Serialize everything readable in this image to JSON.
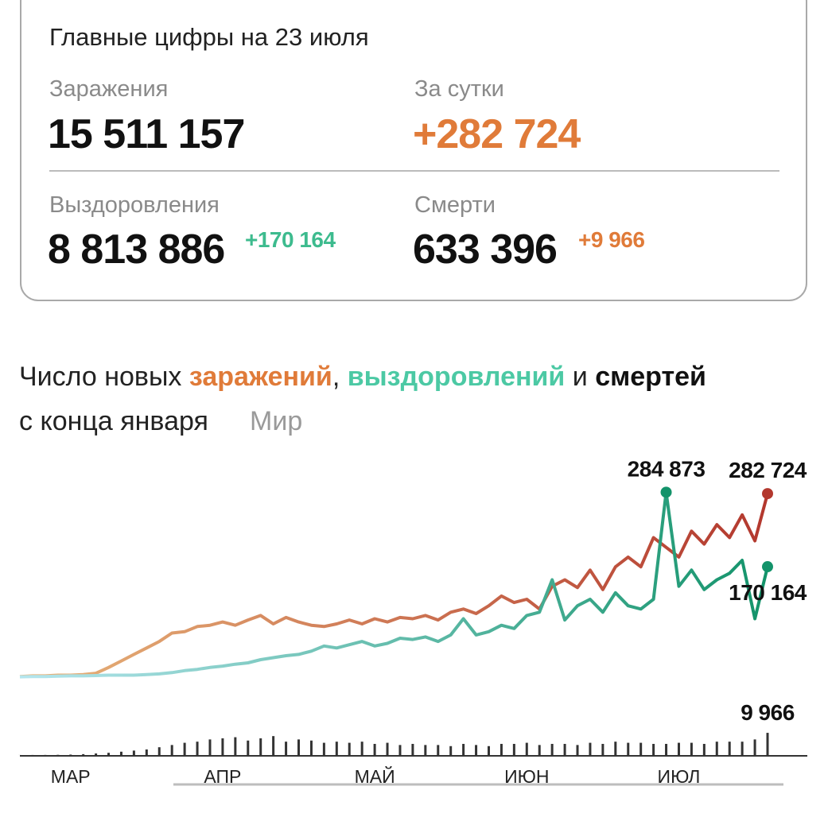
{
  "summary": {
    "title": "Главные цифры на 23 июля",
    "infections": {
      "label": "Заражения",
      "value": "15 511 157"
    },
    "daily": {
      "label": "За сутки",
      "value": "+282 724"
    },
    "recoveries": {
      "label": "Выздоровления",
      "value": "8 813 886",
      "delta": "+170 164"
    },
    "deaths": {
      "label": "Смерти",
      "value": "633 396",
      "delta": "+9 966"
    }
  },
  "chart_data": {
    "type": "line",
    "title_parts": [
      {
        "text": "Число новых ",
        "color": "#222222",
        "bold": false
      },
      {
        "text": "заражений",
        "color": "#e07b39",
        "bold": true
      },
      {
        "text": ", ",
        "color": "#222222",
        "bold": false
      },
      {
        "text": "выздоровлений",
        "color": "#4cc9a4",
        "bold": true
      },
      {
        "text": " и ",
        "color": "#222222",
        "bold": false
      },
      {
        "text": "смертей",
        "color": "#111111",
        "bold": true
      }
    ],
    "subtitle": "с конца января",
    "region": "Мир",
    "categories": [
      null,
      null,
      null,
      null,
      "МАР",
      null,
      null,
      null,
      null,
      null,
      null,
      null,
      null,
      null,
      null,
      null,
      "АПР",
      null,
      null,
      null,
      null,
      null,
      null,
      null,
      null,
      null,
      null,
      null,
      "МАЙ",
      null,
      null,
      null,
      null,
      null,
      null,
      null,
      null,
      null,
      null,
      null,
      "ИЮН",
      null,
      null,
      null,
      null,
      null,
      null,
      null,
      null,
      null,
      null,
      null,
      "ИЮЛ",
      null,
      null,
      null,
      null,
      null,
      null,
      null
    ],
    "ylim": [
      0,
      300000
    ],
    "y2lim": [
      0,
      10700
    ],
    "series": [
      {
        "name": "заражений",
        "color_start": "#e8b57a",
        "color": "#b3382e",
        "values": [
          1000,
          2000,
          2000,
          3000,
          3000,
          4000,
          6000,
          15000,
          25000,
          35000,
          45000,
          55000,
          68000,
          70000,
          78000,
          80000,
          85000,
          80000,
          88000,
          95000,
          82000,
          92000,
          85000,
          80000,
          78000,
          82000,
          88000,
          82000,
          90000,
          85000,
          92000,
          90000,
          95000,
          88000,
          100000,
          105000,
          98000,
          110000,
          125000,
          115000,
          120000,
          105000,
          140000,
          150000,
          138000,
          165000,
          135000,
          170000,
          185000,
          170000,
          215000,
          200000,
          185000,
          225000,
          205000,
          235000,
          215000,
          250000,
          210000,
          282724
        ],
        "value_labels": [
          null,
          null,
          null,
          null,
          null,
          null,
          null,
          null,
          null,
          null,
          null,
          null,
          null,
          null,
          null,
          null,
          null,
          null,
          null,
          null,
          null,
          null,
          null,
          null,
          null,
          null,
          null,
          null,
          null,
          null,
          null,
          null,
          null,
          null,
          null,
          null,
          null,
          null,
          null,
          null,
          null,
          null,
          null,
          null,
          null,
          null,
          null,
          null,
          null,
          null,
          null,
          null,
          null,
          null,
          null,
          null,
          null,
          null,
          null,
          "282 724"
        ]
      },
      {
        "name": "выздоровлений",
        "color_start": "#b5e6ee",
        "color": "#13936a",
        "values": [
          500,
          1000,
          1000,
          1500,
          2000,
          2000,
          2500,
          3000,
          3000,
          3000,
          4000,
          5000,
          7000,
          10000,
          12000,
          15000,
          17000,
          20000,
          22000,
          27000,
          30000,
          33000,
          35000,
          40000,
          48000,
          45000,
          50000,
          55000,
          48000,
          52000,
          60000,
          58000,
          62000,
          55000,
          65000,
          90000,
          65000,
          70000,
          80000,
          75000,
          95000,
          100000,
          150000,
          88000,
          110000,
          120000,
          100000,
          130000,
          110000,
          105000,
          120000,
          284873,
          140000,
          165000,
          135000,
          150000,
          160000,
          180000,
          90000,
          170164
        ],
        "value_labels": [
          null,
          null,
          null,
          null,
          null,
          null,
          null,
          null,
          null,
          null,
          null,
          null,
          null,
          null,
          null,
          null,
          null,
          null,
          null,
          null,
          null,
          null,
          null,
          null,
          null,
          null,
          null,
          null,
          null,
          null,
          null,
          null,
          null,
          null,
          null,
          null,
          null,
          null,
          null,
          null,
          null,
          null,
          null,
          null,
          null,
          null,
          null,
          null,
          null,
          null,
          null,
          "284 873",
          null,
          null,
          null,
          null,
          null,
          null,
          null,
          "170 164"
        ]
      },
      {
        "name": "смертей",
        "color": "#333333",
        "type": "bar",
        "axis": "y2",
        "values": [
          20,
          30,
          50,
          100,
          200,
          400,
          700,
          1000,
          1500,
          2000,
          2500,
          3500,
          4500,
          5500,
          6000,
          7000,
          7500,
          8000,
          6500,
          7500,
          8500,
          6000,
          7000,
          6500,
          5500,
          6000,
          5500,
          6000,
          5000,
          5500,
          4500,
          5000,
          4500,
          4500,
          4000,
          5000,
          4500,
          4000,
          5000,
          5000,
          5500,
          4500,
          5000,
          5000,
          4500,
          5500,
          5000,
          6000,
          5500,
          5500,
          5000,
          5000,
          5500,
          5500,
          5000,
          6000,
          6000,
          6000,
          7000,
          9966
        ],
        "value_labels": [
          null,
          null,
          null,
          null,
          null,
          null,
          null,
          null,
          null,
          null,
          null,
          null,
          null,
          null,
          null,
          null,
          null,
          null,
          null,
          null,
          null,
          null,
          null,
          null,
          null,
          null,
          null,
          null,
          null,
          null,
          null,
          null,
          null,
          null,
          null,
          null,
          null,
          null,
          null,
          null,
          null,
          null,
          null,
          null,
          null,
          null,
          null,
          null,
          null,
          null,
          null,
          null,
          null,
          null,
          null,
          null,
          null,
          null,
          null,
          "9 966"
        ]
      }
    ]
  }
}
